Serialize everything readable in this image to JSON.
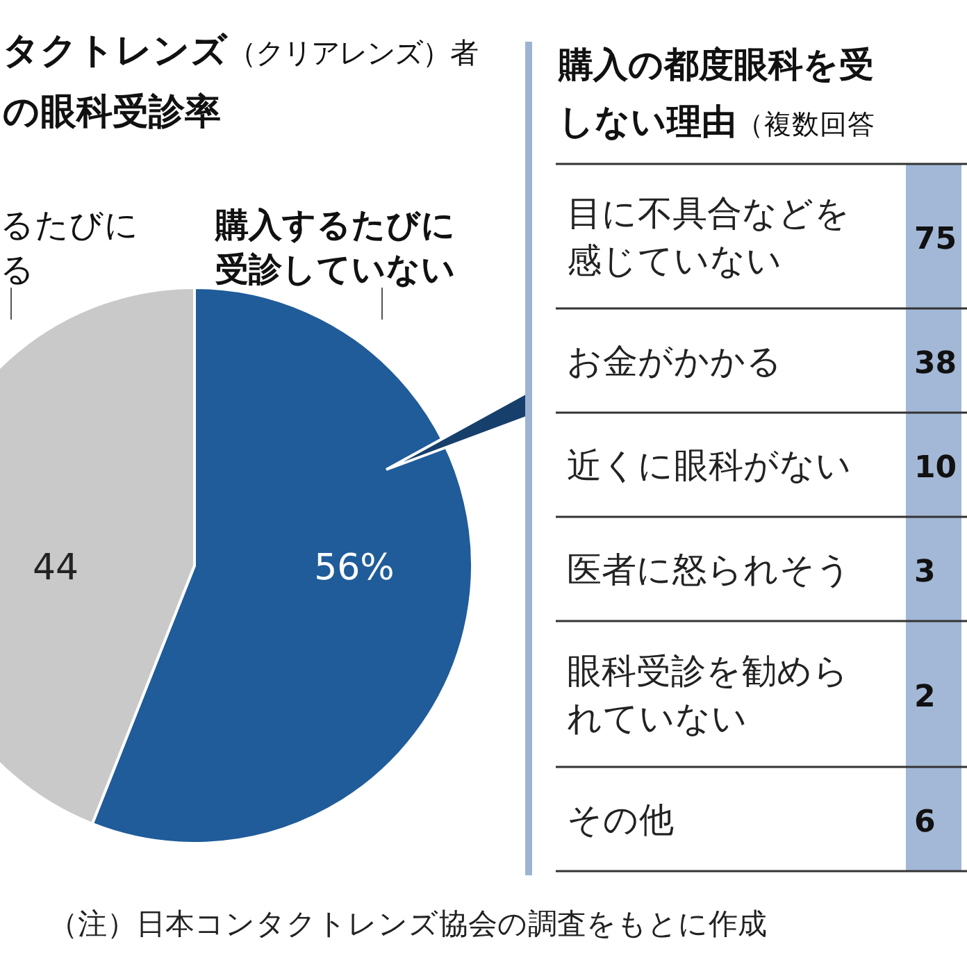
{
  "chart_data": [
    {
      "type": "pie",
      "title": "タクトレンズ（クリアレンズ）者の眼科受診率",
      "categories": [
        "購入するたびに受診していない",
        "るたびにる"
      ],
      "values": [
        56,
        44
      ],
      "colors": [
        "#1f5c99",
        "#c9c9c9"
      ],
      "value_labels": [
        "56%",
        "44"
      ],
      "annotations": [
        "（注）日本コンタクトレンズ協会の調査をもとに作成"
      ]
    },
    {
      "type": "other",
      "title": "購入の都度眼科を受しない理由（複数回答",
      "categories": [
        "目に不具合などを感じていない",
        "お金がかかる",
        "近くに眼科がない",
        "医者に怒られそう",
        "眼科受診を勧められていない",
        "その他"
      ],
      "value_labels": [
        "75",
        "38",
        "10",
        "3",
        "2",
        "6"
      ]
    }
  ]
}
